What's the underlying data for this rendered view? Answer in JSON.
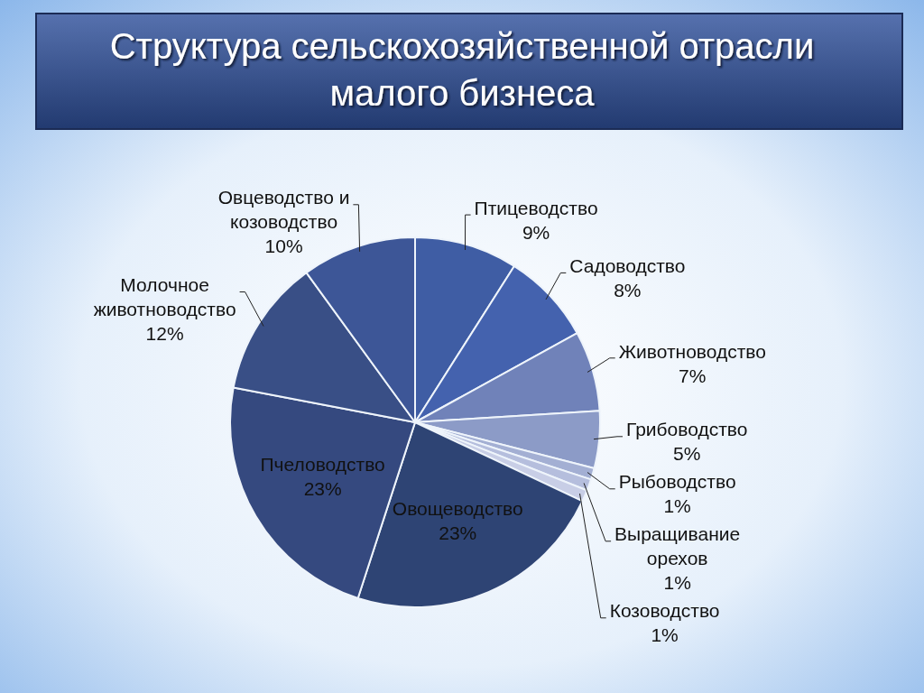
{
  "chart_data": {
    "type": "pie",
    "title": "Структура сельскохозяйственной отрасли малого бизнеса",
    "categories": [
      "Птицеводство",
      "Садоводство",
      "Животноводство",
      "Грибоводство",
      "Рыбоводство",
      "Выращивание орехов",
      "Козоводство",
      "Овощеводство",
      "Пчеловодство",
      "Молочное животноводство",
      "Овцеводство и козоводство"
    ],
    "values": [
      9,
      8,
      7,
      5,
      1,
      1,
      1,
      23,
      23,
      12,
      10
    ],
    "value_labels": [
      "9%",
      "8%",
      "7%",
      "5%",
      "1%",
      "1%",
      "1%",
      "23%",
      "23%",
      "12%",
      "10%"
    ],
    "colors": [
      "#3f5da4",
      "#4462ae",
      "#7082b9",
      "#8c9bc7",
      "#a3afd3",
      "#b5bedd",
      "#c8cee6",
      "#2e4474",
      "#35497f",
      "#394f86",
      "#3d5697"
    ]
  }
}
